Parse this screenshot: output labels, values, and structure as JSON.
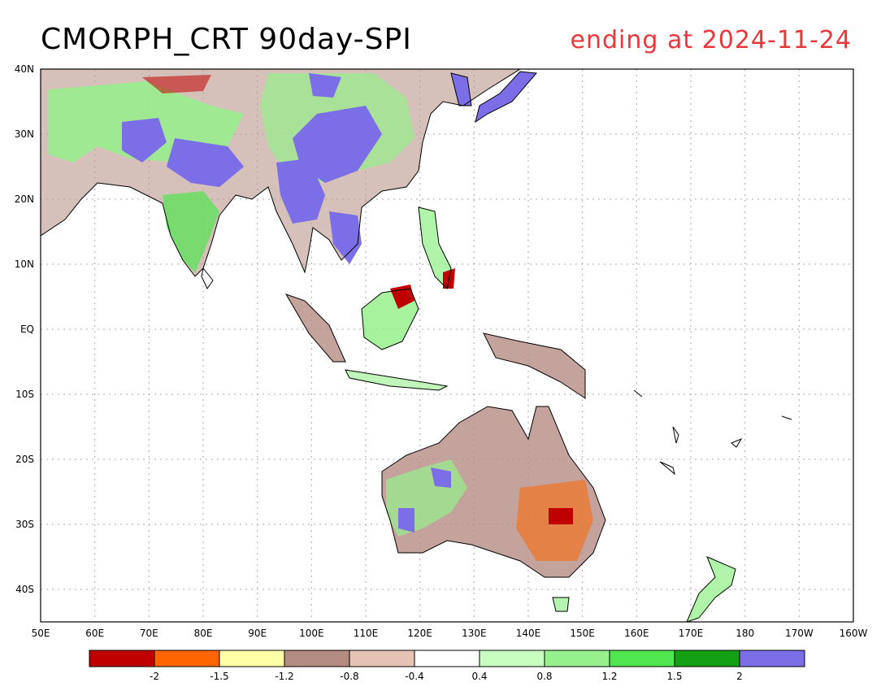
{
  "title": {
    "left": "CMORPH_CRT 90day-SPI",
    "right": "ending at 2024-11-24"
  },
  "map": {
    "lon_ticks": [
      "50E",
      "60E",
      "70E",
      "80E",
      "90E",
      "100E",
      "110E",
      "120E",
      "130E",
      "140E",
      "150E",
      "160E",
      "170E",
      "180",
      "170W",
      "160W"
    ],
    "lat_ticks": [
      "40N",
      "30N",
      "20N",
      "10N",
      "EQ",
      "10S",
      "20S",
      "30S",
      "40S"
    ]
  },
  "legend": {
    "colors": [
      "#c00000",
      "#ff6600",
      "#ffffa8",
      "#b48c82",
      "#e6c3b4",
      "#ffffff",
      "#c8ffc0",
      "#96f08c",
      "#50e650",
      "#14a014",
      "#7b6ee6"
    ],
    "labels": [
      "-2",
      "-1.5",
      "-1.2",
      "-0.8",
      "-0.4",
      "0.4",
      "0.8",
      "1.2",
      "1.5",
      "2"
    ]
  }
}
